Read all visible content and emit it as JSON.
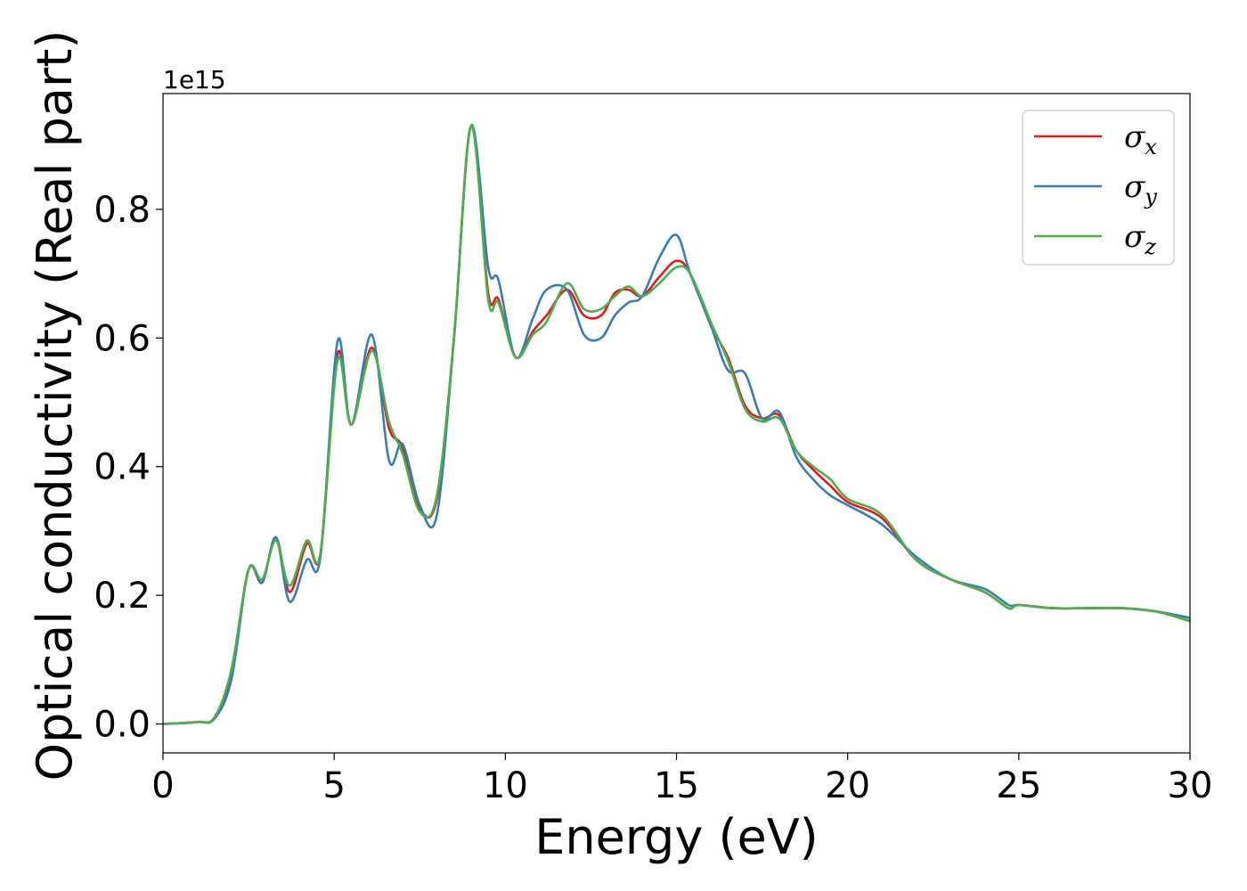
{
  "chart_data": {
    "type": "line",
    "title": "",
    "xlabel": "Energy (eV)",
    "ylabel": "Optical conductivity (Real part)",
    "y_offset_label": "1e15",
    "xlim": [
      0,
      30
    ],
    "ylim": [
      -0.045,
      0.98
    ],
    "xticks": [
      0,
      5,
      10,
      15,
      20,
      25,
      30
    ],
    "xtick_labels": [
      "0",
      "5",
      "10",
      "15",
      "20",
      "25",
      "30"
    ],
    "yticks": [
      0.0,
      0.2,
      0.4,
      0.6,
      0.8
    ],
    "ytick_labels": [
      "0.0",
      "0.2",
      "0.4",
      "0.6",
      "0.8"
    ],
    "grid": false,
    "legend_position": "top-right",
    "series": [
      {
        "name": "σx",
        "name_base": "σ",
        "name_sub": "x",
        "color": "#e41a1c",
        "x": [
          0,
          1,
          1.5,
          2,
          2.5,
          2.9,
          3.3,
          3.7,
          4.2,
          4.6,
          5.1,
          5.5,
          6.1,
          6.6,
          7.0,
          7.5,
          8.0,
          8.5,
          9.0,
          9.5,
          9.8,
          10.3,
          10.8,
          11.2,
          11.8,
          12.3,
          12.8,
          13.2,
          13.6,
          14.0,
          14.5,
          15.0,
          15.4,
          16.0,
          16.5,
          17.0,
          17.5,
          18.0,
          18.5,
          19.0,
          19.5,
          20.0,
          21.0,
          22.0,
          23.0,
          24.0,
          24.7,
          25.0,
          26.0,
          27.0,
          28.0,
          29.0,
          30.0
        ],
        "values": [
          0,
          0.003,
          0.01,
          0.08,
          0.24,
          0.22,
          0.29,
          0.205,
          0.28,
          0.265,
          0.575,
          0.465,
          0.585,
          0.46,
          0.43,
          0.335,
          0.35,
          0.6,
          0.93,
          0.67,
          0.66,
          0.57,
          0.61,
          0.635,
          0.675,
          0.635,
          0.635,
          0.67,
          0.675,
          0.665,
          0.695,
          0.72,
          0.7,
          0.62,
          0.57,
          0.495,
          0.475,
          0.48,
          0.425,
          0.395,
          0.37,
          0.345,
          0.32,
          0.255,
          0.225,
          0.205,
          0.18,
          0.185,
          0.18,
          0.18,
          0.18,
          0.175,
          0.16
        ]
      },
      {
        "name": "σy",
        "name_base": "σ",
        "name_sub": "y",
        "color": "#377eb8",
        "x": [
          0,
          1,
          1.5,
          2,
          2.5,
          2.9,
          3.3,
          3.7,
          4.2,
          4.6,
          5.1,
          5.5,
          6.1,
          6.6,
          7.0,
          7.5,
          8.0,
          8.5,
          9.0,
          9.5,
          9.8,
          10.3,
          10.8,
          11.2,
          11.8,
          12.3,
          12.8,
          13.2,
          13.6,
          14.0,
          14.5,
          15.0,
          15.4,
          16.0,
          16.5,
          17.0,
          17.5,
          18.0,
          18.5,
          19.0,
          19.5,
          20.0,
          21.0,
          22.0,
          23.0,
          24.0,
          24.7,
          25.0,
          26.0,
          27.0,
          28.0,
          29.0,
          30.0
        ],
        "values": [
          0,
          0.003,
          0.008,
          0.07,
          0.24,
          0.22,
          0.29,
          0.19,
          0.255,
          0.26,
          0.595,
          0.465,
          0.605,
          0.41,
          0.435,
          0.34,
          0.325,
          0.6,
          0.93,
          0.71,
          0.69,
          0.57,
          0.63,
          0.675,
          0.675,
          0.605,
          0.6,
          0.635,
          0.655,
          0.665,
          0.725,
          0.76,
          0.7,
          0.62,
          0.55,
          0.545,
          0.475,
          0.485,
          0.415,
          0.38,
          0.355,
          0.34,
          0.31,
          0.26,
          0.225,
          0.21,
          0.185,
          0.185,
          0.18,
          0.18,
          0.18,
          0.175,
          0.165
        ]
      },
      {
        "name": "σz",
        "name_base": "σ",
        "name_sub": "z",
        "color": "#4daf4a",
        "x": [
          0,
          1,
          1.5,
          2,
          2.5,
          2.9,
          3.3,
          3.7,
          4.2,
          4.6,
          5.1,
          5.5,
          6.1,
          6.6,
          7.0,
          7.5,
          8.0,
          8.5,
          9.0,
          9.5,
          9.8,
          10.3,
          10.8,
          11.2,
          11.8,
          12.3,
          12.8,
          13.2,
          13.6,
          14.0,
          14.5,
          15.0,
          15.4,
          16.0,
          16.5,
          17.0,
          17.5,
          18.0,
          18.5,
          19.0,
          19.5,
          20.0,
          21.0,
          22.0,
          23.0,
          24.0,
          24.7,
          25.0,
          26.0,
          27.0,
          28.0,
          29.0,
          30.0
        ],
        "values": [
          0,
          0.003,
          0.01,
          0.085,
          0.24,
          0.225,
          0.285,
          0.215,
          0.285,
          0.265,
          0.565,
          0.465,
          0.58,
          0.47,
          0.42,
          0.33,
          0.355,
          0.6,
          0.93,
          0.66,
          0.655,
          0.57,
          0.605,
          0.625,
          0.685,
          0.645,
          0.645,
          0.665,
          0.68,
          0.665,
          0.685,
          0.71,
          0.7,
          0.625,
          0.565,
          0.49,
          0.47,
          0.475,
          0.425,
          0.4,
          0.38,
          0.35,
          0.325,
          0.255,
          0.225,
          0.205,
          0.18,
          0.185,
          0.18,
          0.18,
          0.18,
          0.175,
          0.16
        ]
      }
    ]
  }
}
